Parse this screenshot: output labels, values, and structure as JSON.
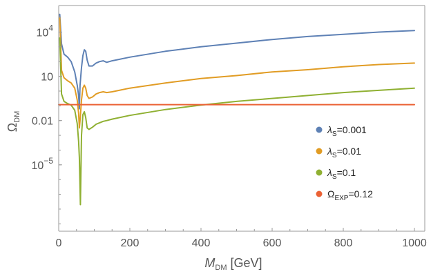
{
  "chart_data": {
    "type": "line",
    "xlabel_main": "M",
    "xlabel_sub": "DM",
    "xlabel_unit": " [GeV]",
    "ylabel_main": "Ω",
    "ylabel_sub": "DM",
    "xlim": [
      0,
      1000
    ],
    "ylim_log10": [
      -9.5,
      5.8
    ],
    "y_scale": "log",
    "x_ticks": [
      {
        "value": 0,
        "label": "0"
      },
      {
        "value": 200,
        "label": "200"
      },
      {
        "value": 400,
        "label": "400"
      },
      {
        "value": 600,
        "label": "600"
      },
      {
        "value": 800,
        "label": "800"
      },
      {
        "value": 1000,
        "label": "1000"
      }
    ],
    "y_ticks": [
      {
        "log10": 4,
        "base": "10",
        "exp": "4",
        "label": ""
      },
      {
        "log10": 1,
        "base": "",
        "exp": "",
        "label": "10"
      },
      {
        "log10": -2,
        "base": "",
        "exp": "",
        "label": "0.01"
      },
      {
        "log10": -5,
        "base": "10",
        "exp": "−5",
        "label": ""
      }
    ],
    "legend_position": "right",
    "series": [
      {
        "label_greek": "λ",
        "label_sub": "S",
        "label_tail": "=0.001",
        "color": "#5e81b5",
        "points_log10": [
          [
            3,
            5.2
          ],
          [
            8,
            3.2
          ],
          [
            15,
            2.5
          ],
          [
            25,
            2.3
          ],
          [
            35,
            2.0
          ],
          [
            45,
            1.3
          ],
          [
            52,
            0.4
          ],
          [
            56,
            -0.3
          ],
          [
            58,
            -1.2
          ],
          [
            60,
            0.4
          ],
          [
            64,
            1.6
          ],
          [
            68,
            2.4
          ],
          [
            72,
            2.8
          ],
          [
            76,
            2.7
          ],
          [
            80,
            2.1
          ],
          [
            85,
            1.7
          ],
          [
            95,
            1.7
          ],
          [
            105,
            1.9
          ],
          [
            115,
            2.0
          ],
          [
            125,
            2.05
          ],
          [
            135,
            1.95
          ],
          [
            150,
            2.05
          ],
          [
            200,
            2.3
          ],
          [
            300,
            2.7
          ],
          [
            400,
            3.0
          ],
          [
            500,
            3.25
          ],
          [
            600,
            3.5
          ],
          [
            700,
            3.7
          ],
          [
            800,
            3.85
          ],
          [
            900,
            4.0
          ],
          [
            1000,
            4.1
          ]
        ]
      },
      {
        "label_greek": "λ",
        "label_sub": "S",
        "label_tail": "=0.01",
        "color": "#e19c24",
        "points_log10": [
          [
            3,
            5.0
          ],
          [
            8,
            1.4
          ],
          [
            15,
            0.9
          ],
          [
            25,
            0.7
          ],
          [
            35,
            0.55
          ],
          [
            45,
            0.2
          ],
          [
            52,
            -0.6
          ],
          [
            56,
            -1.5
          ],
          [
            58,
            -2.5
          ],
          [
            60,
            -2.0
          ],
          [
            64,
            -0.6
          ],
          [
            68,
            0.2
          ],
          [
            72,
            0.4
          ],
          [
            76,
            0.2
          ],
          [
            80,
            -0.3
          ],
          [
            85,
            -0.5
          ],
          [
            95,
            -0.4
          ],
          [
            105,
            -0.2
          ],
          [
            115,
            -0.1
          ],
          [
            125,
            -0.05
          ],
          [
            135,
            -0.1
          ],
          [
            150,
            -0.05
          ],
          [
            200,
            0.2
          ],
          [
            300,
            0.55
          ],
          [
            400,
            0.85
          ],
          [
            500,
            1.05
          ],
          [
            600,
            1.3
          ],
          [
            700,
            1.45
          ],
          [
            800,
            1.65
          ],
          [
            900,
            1.8
          ],
          [
            1000,
            1.9
          ]
        ]
      },
      {
        "label_greek": "λ",
        "label_sub": "S",
        "label_tail": "=0.1",
        "color": "#8fb032",
        "points_log10": [
          [
            3,
            3.6
          ],
          [
            8,
            -0.2
          ],
          [
            15,
            -0.7
          ],
          [
            25,
            -0.85
          ],
          [
            35,
            -0.95
          ],
          [
            45,
            -1.3
          ],
          [
            52,
            -2.2
          ],
          [
            56,
            -3.4
          ],
          [
            58,
            -4.5
          ],
          [
            61,
            -7.7
          ],
          [
            64,
            -3.0
          ],
          [
            68,
            -1.6
          ],
          [
            72,
            -1.4
          ],
          [
            76,
            -1.8
          ],
          [
            80,
            -2.5
          ],
          [
            85,
            -2.6
          ],
          [
            95,
            -2.45
          ],
          [
            105,
            -2.25
          ],
          [
            115,
            -2.15
          ],
          [
            125,
            -2.05
          ],
          [
            135,
            -2.0
          ],
          [
            150,
            -1.9
          ],
          [
            200,
            -1.65
          ],
          [
            300,
            -1.25
          ],
          [
            400,
            -0.95
          ],
          [
            500,
            -0.7
          ],
          [
            600,
            -0.5
          ],
          [
            700,
            -0.3
          ],
          [
            800,
            -0.1
          ],
          [
            900,
            0.05
          ],
          [
            1000,
            0.2
          ]
        ]
      },
      {
        "label_greek": "Ω",
        "label_sub": "EXP",
        "label_tail": "=0.12",
        "color": "#eb6235",
        "points_log10": [
          [
            0,
            -0.92
          ],
          [
            1000,
            -0.92
          ]
        ]
      }
    ]
  }
}
